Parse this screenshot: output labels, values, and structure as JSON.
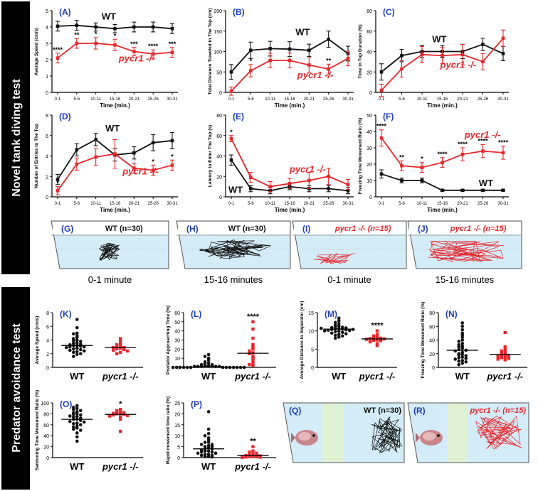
{
  "sections": {
    "novel_tank": "Novel tank diving test",
    "predator": "Predator avoidance test"
  },
  "labels": {
    "wt": "WT",
    "mut": "pycr1 -/-"
  },
  "colors": {
    "wt": "#111111",
    "mut": "#e8262b",
    "panel_label": "#1f3fbf",
    "tank_fill": "#d4ecf8",
    "separator_fill": "#dff3d4"
  },
  "time_categories": [
    "0-1",
    "5-6",
    "10-11",
    "15-16",
    "20-21",
    "25-26",
    "30-31"
  ],
  "time_xlabel": "Time (min.)",
  "chart_data": [
    {
      "id": "A",
      "label": "(A)",
      "type": "line",
      "ylabel": "Average Speed (cm/s)",
      "ylim": [
        0,
        5
      ],
      "yticks": [
        0,
        1,
        2,
        3,
        4,
        5
      ],
      "series": [
        {
          "name": "WT",
          "values": [
            4.05,
            4.1,
            4.0,
            3.9,
            4.0,
            4.0,
            3.9
          ],
          "err": [
            0.3,
            0.3,
            0.25,
            0.25,
            0.3,
            0.3,
            0.3
          ]
        },
        {
          "name": "pycr1 -/-",
          "values": [
            2.1,
            3.0,
            3.0,
            2.9,
            2.5,
            2.35,
            2.45
          ],
          "err": [
            0.3,
            0.3,
            0.35,
            0.35,
            0.25,
            0.25,
            0.3
          ]
        }
      ],
      "stars": [
        "****",
        "**",
        "*",
        "*",
        "***",
        "****",
        "***"
      ],
      "wt_label_pos": [
        2.3,
        4.45
      ],
      "mut_label_pos": [
        3.2,
        1.9
      ]
    },
    {
      "id": "B",
      "label": "(B)",
      "type": "line",
      "ylabel": "Total Distance Traveled in The Top (cm)",
      "ylim": [
        0,
        200
      ],
      "yticks": [
        0,
        50,
        100,
        150,
        200
      ],
      "series": [
        {
          "name": "WT",
          "values": [
            50,
            103,
            107,
            106,
            103,
            130,
            95
          ],
          "err": [
            18,
            20,
            18,
            18,
            15,
            20,
            18
          ]
        },
        {
          "name": "pycr1 -/-",
          "values": [
            3,
            53,
            78,
            78,
            67,
            57,
            83
          ],
          "err": [
            10,
            15,
            18,
            18,
            18,
            12,
            18
          ]
        }
      ],
      "stars": [
        "",
        "*",
        "",
        "",
        "",
        "**",
        ""
      ],
      "wt_label_pos": [
        3.3,
        140
      ],
      "mut_label_pos": [
        3.4,
        35
      ]
    },
    {
      "id": "C",
      "label": "(C)",
      "type": "line",
      "ylabel": "Time in Top Duration (%)",
      "ylim": [
        0,
        80
      ],
      "yticks": [
        0,
        20,
        40,
        60,
        80
      ],
      "series": [
        {
          "name": "WT",
          "values": [
            20,
            36,
            40,
            40,
            40,
            47,
            38
          ],
          "err": [
            8,
            6,
            6,
            6,
            7,
            6,
            7
          ]
        },
        {
          "name": "pycr1 -/-",
          "values": [
            2,
            23,
            37,
            36,
            37,
            30,
            53
          ],
          "err": [
            6,
            8,
            8,
            8,
            10,
            8,
            8
          ]
        }
      ],
      "stars": [
        "",
        "*",
        "",
        "",
        "",
        "",
        ""
      ],
      "wt_label_pos": [
        2.5,
        49
      ],
      "mut_label_pos": [
        2.9,
        24
      ]
    },
    {
      "id": "D",
      "label": "(D)",
      "type": "line",
      "ylabel": "Number of Entries to The Top",
      "ylim": [
        0,
        8
      ],
      "yticks": [
        0,
        2,
        4,
        6,
        8
      ],
      "series": [
        {
          "name": "WT",
          "values": [
            1.7,
            4.6,
            5.6,
            4.1,
            4.3,
            5.3,
            5.5
          ],
          "err": [
            0.5,
            0.6,
            0.6,
            0.6,
            0.6,
            0.8,
            0.8
          ]
        },
        {
          "name": "pycr1 -/-",
          "values": [
            0.6,
            3.2,
            3.9,
            4.2,
            2.8,
            2.6,
            3.1
          ],
          "err": [
            0.4,
            0.6,
            0.8,
            1.4,
            0.5,
            0.5,
            0.5
          ]
        }
      ],
      "stars": [
        "*",
        "",
        "",
        "",
        "",
        "*",
        "*"
      ],
      "wt_label_pos": [
        2.5,
        6.4
      ],
      "mut_label_pos": [
        3.4,
        2.2
      ]
    },
    {
      "id": "E",
      "label": "(E)",
      "type": "line",
      "ylabel": "Latency to Enter The Top (s)",
      "ylim": [
        0,
        80
      ],
      "yticks": [
        0,
        20,
        40,
        60,
        80
      ],
      "series": [
        {
          "name": "WT",
          "values": [
            36,
            8,
            6,
            10,
            8,
            8,
            6
          ],
          "err": [
            5,
            3,
            3,
            3,
            3,
            3,
            3
          ]
        },
        {
          "name": "pycr1 -/-",
          "values": [
            57,
            19,
            10,
            13,
            16,
            20,
            12
          ],
          "err": [
            3,
            5,
            5,
            5,
            8,
            8,
            5
          ]
        }
      ],
      "stars": [
        "*",
        "",
        "",
        "",
        "",
        "",
        ""
      ],
      "wt_label_pos": [
        0.15,
        4
      ],
      "mut_label_pos": [
        3.0,
        24
      ]
    },
    {
      "id": "F",
      "label": "(F)",
      "type": "line",
      "ylabel": "Freezing Time Movement Ratio (%)",
      "ylim": [
        0,
        50
      ],
      "yticks": [
        0,
        10,
        20,
        30,
        40,
        50
      ],
      "series": [
        {
          "name": "WT",
          "values": [
            14,
            10,
            10,
            4,
            4,
            4,
            4
          ],
          "err": [
            2.5,
            1.5,
            1.5,
            0.5,
            0.5,
            0.5,
            0.5
          ]
        },
        {
          "name": "pycr1 -/-",
          "values": [
            36,
            19,
            18,
            21,
            26,
            28,
            27
          ],
          "err": [
            5,
            3,
            3,
            3,
            4,
            4,
            4
          ]
        }
      ],
      "stars": [
        "****",
        "**",
        "*",
        "****",
        "****",
        "****",
        "****"
      ],
      "wt_label_pos": [
        4.8,
        6.5
      ],
      "mut_label_pos": [
        4.1,
        36
      ]
    },
    {
      "id": "K",
      "label": "(K)",
      "type": "scatter",
      "ylabel": "Average Speed (cm/s)",
      "ylim": [
        0,
        8
      ],
      "yticks": [
        0,
        2,
        4,
        6,
        8
      ],
      "categories": [
        "WT",
        "pycr1 -/-"
      ],
      "wt_points": [
        7.0,
        5.8,
        5.0,
        4.9,
        4.6,
        4.4,
        4.2,
        4.0,
        3.9,
        3.8,
        3.6,
        3.5,
        3.4,
        3.3,
        3.2,
        3.2,
        3.1,
        3.0,
        3.0,
        2.9,
        2.8,
        2.7,
        2.6,
        2.5,
        2.4,
        2.3,
        2.2,
        2.0,
        1.9,
        1.6
      ],
      "mut_points": [
        4.2,
        3.8,
        3.5,
        3.3,
        3.1,
        3.0,
        2.9,
        2.9,
        2.8,
        2.7,
        2.6,
        2.5,
        2.4,
        2.2,
        2.0
      ],
      "wt_median": 3.2,
      "mut_median": 2.9,
      "stars": ""
    },
    {
      "id": "L",
      "label": "(L)",
      "type": "scatter",
      "ylabel": "Predator Approaching Time (%)",
      "ylim": [
        0,
        60
      ],
      "yticks": [
        0,
        10,
        20,
        30,
        40,
        50,
        60
      ],
      "categories": [
        "WT",
        "pycr1 -/-"
      ],
      "wt_points": [
        14,
        12,
        10,
        8,
        6,
        5,
        4,
        3,
        3,
        2,
        2,
        2,
        1,
        1,
        1,
        1,
        1,
        0,
        0,
        0,
        0,
        0,
        0,
        0,
        0,
        0,
        0,
        0,
        0,
        0
      ],
      "mut_points": [
        50,
        42,
        32,
        25,
        22,
        20,
        18,
        16,
        15,
        12,
        10,
        8,
        5,
        3,
        2
      ],
      "wt_median": 1,
      "mut_median": 15.5,
      "stars": "****"
    },
    {
      "id": "M",
      "label": "(M)",
      "type": "scatter",
      "ylabel": "Average Distance to Separator (cm)",
      "ylim": [
        0,
        15
      ],
      "yticks": [
        0,
        5,
        10,
        15
      ],
      "categories": [
        "WT",
        "pycr1 -/-"
      ],
      "wt_points": [
        13.5,
        12.8,
        12.3,
        12.0,
        11.6,
        11.4,
        11.2,
        11.0,
        10.9,
        10.8,
        10.7,
        10.6,
        10.5,
        10.4,
        10.3,
        10.2,
        10.1,
        10.0,
        9.9,
        9.8,
        9.6,
        9.4,
        9.2,
        9.0,
        8.8,
        8.6,
        8.3,
        8.0,
        10.4,
        10.7
      ],
      "mut_points": [
        10.0,
        9.0,
        8.6,
        8.3,
        8.1,
        8.0,
        7.9,
        7.8,
        7.7,
        7.5,
        7.4,
        7.3,
        7.0,
        6.5,
        6.0
      ],
      "wt_median": 10.5,
      "mut_median": 7.8,
      "stars": "****"
    },
    {
      "id": "N",
      "label": "(N)",
      "type": "scatter",
      "ylabel": "Freezing Time Movement Ratio (%)",
      "ylim": [
        0,
        80
      ],
      "yticks": [
        0,
        20,
        40,
        60,
        80
      ],
      "categories": [
        "WT",
        "pycr1 -/-"
      ],
      "wt_points": [
        65,
        60,
        55,
        50,
        47,
        44,
        40,
        38,
        35,
        33,
        31,
        30,
        28,
        26,
        25,
        24,
        22,
        20,
        19,
        18,
        17,
        15,
        14,
        13,
        12,
        10,
        9,
        8,
        6,
        4
      ],
      "mut_points": [
        51,
        30,
        26,
        24,
        22,
        20,
        19,
        18,
        17,
        16,
        15,
        14,
        13,
        12,
        11
      ],
      "wt_median": 25,
      "mut_median": 19,
      "stars": ""
    },
    {
      "id": "O",
      "label": "(O)",
      "type": "scatter",
      "ylabel": "Swimming Time Movement Ratio (%)",
      "ylim": [
        0,
        100
      ],
      "yticks": [
        0,
        20,
        40,
        60,
        80,
        100
      ],
      "categories": [
        "WT",
        "pycr1 -/-"
      ],
      "wt_points": [
        95,
        92,
        90,
        88,
        86,
        84,
        82,
        80,
        79,
        78,
        76,
        75,
        74,
        72,
        70,
        70,
        68,
        66,
        65,
        63,
        62,
        60,
        58,
        56,
        54,
        52,
        50,
        45,
        38,
        30
      ],
      "mut_points": [
        88,
        86,
        84,
        83,
        82,
        81,
        80,
        80,
        79,
        78,
        77,
        76,
        74,
        70,
        48
      ],
      "wt_median": 70,
      "mut_median": 79,
      "stars": "*"
    },
    {
      "id": "P",
      "label": "(P)",
      "type": "scatter",
      "ylabel": "Rapid movement time ratio (%)",
      "ylim": [
        0,
        25
      ],
      "yticks": [
        0,
        5,
        10,
        15,
        20,
        25
      ],
      "categories": [
        "WT",
        "pycr1 -/-"
      ],
      "wt_points": [
        21,
        13,
        11,
        10,
        9,
        8,
        7,
        7,
        6,
        6,
        5.5,
        5,
        5,
        4.5,
        4,
        4,
        3.5,
        3,
        3,
        2.5,
        2.5,
        2,
        2,
        1.5,
        1.5,
        1,
        1,
        0.5,
        0.5,
        0.3
      ],
      "mut_points": [
        5,
        3,
        2.5,
        2,
        1.5,
        1.2,
        1,
        0.9,
        0.8,
        0.6,
        0.5,
        0.4,
        0.3,
        0.2,
        0.1
      ],
      "wt_median": 4,
      "mut_median": 1,
      "stars": "**"
    }
  ],
  "tracks": [
    {
      "id": "G",
      "label": "(G)",
      "title": "WT (n=30)",
      "group": "wt",
      "caption": "0-1 minute"
    },
    {
      "id": "H",
      "label": "(H)",
      "title": "WT (n=30)",
      "group": "wt",
      "caption": "15-16 minutes"
    },
    {
      "id": "I",
      "label": "(I)",
      "title": "pycr1 -/- (n=15)",
      "group": "mut",
      "caption": "0-1 minute"
    },
    {
      "id": "J",
      "label": "(J)",
      "title": "pycr1 -/- (n=15)",
      "group": "mut",
      "caption": "15-16 minutes"
    }
  ],
  "predator_tanks": [
    {
      "id": "Q",
      "label": "(Q)",
      "title": "WT (n=30)",
      "group": "wt"
    },
    {
      "id": "R",
      "label": "(R)",
      "title": "pycr1 -/- (n=15)",
      "group": "mut"
    }
  ]
}
